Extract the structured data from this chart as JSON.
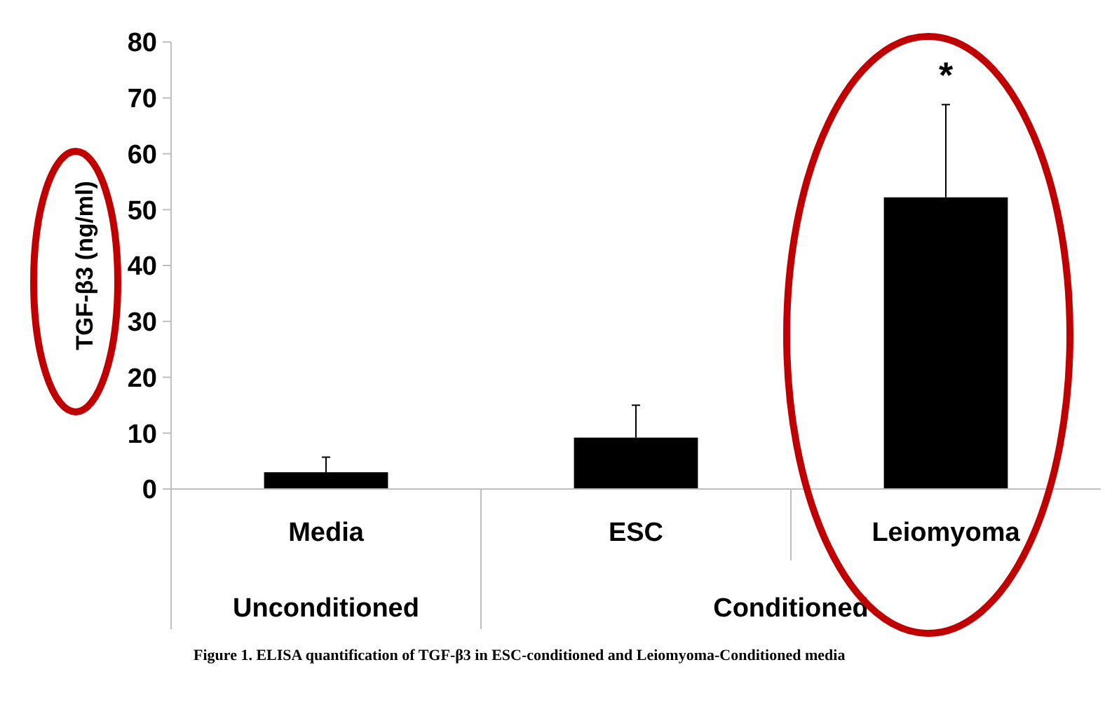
{
  "chart_data": {
    "type": "bar",
    "ylabel": "TGF-β3 (ng/ml)",
    "categories": [
      "Media",
      "ESC",
      "Leiomyoma"
    ],
    "values": [
      3,
      9.2,
      52.2
    ],
    "errors": [
      [
        3,
        5.7
      ],
      [
        9.2,
        15
      ],
      [
        52.2,
        68.8
      ]
    ],
    "color": "#000000",
    "ylim": [
      0,
      80
    ],
    "yticks": [
      0,
      10,
      20,
      30,
      40,
      50,
      60,
      70,
      80
    ],
    "grid": false,
    "annotations": [
      "*",
      "Unconditioned",
      "Conditioned",
      "Figure 1. ELISA quantification of TGF-β3 in ESC-conditioned and Leiomyoma-Conditioned media"
    ]
  }
}
